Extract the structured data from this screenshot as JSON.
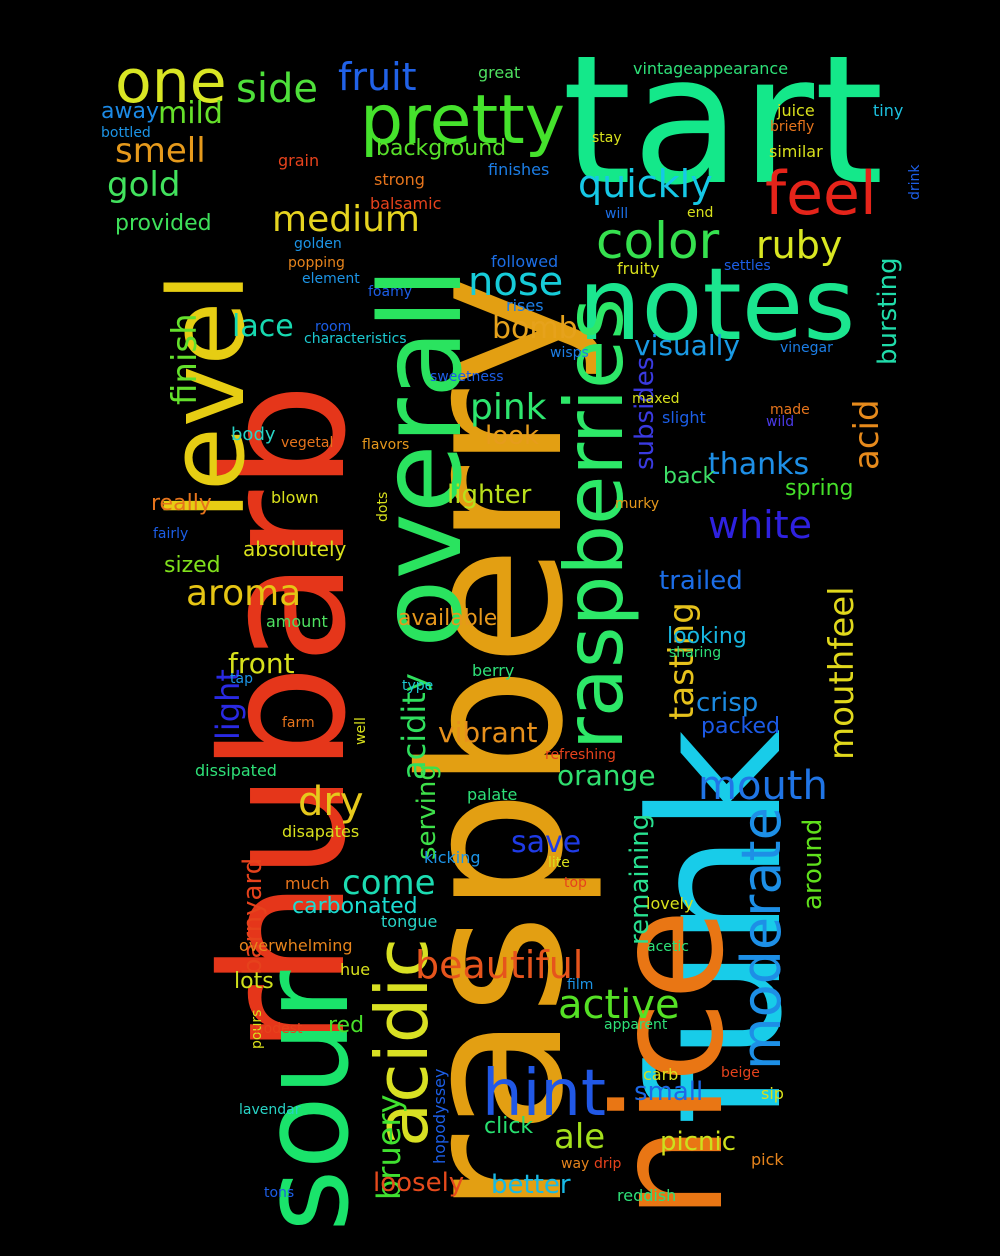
{
  "background": "#000000",
  "words": [
    {
      "text": "raspberry",
      "color": "#e39f12",
      "vertical": true
    },
    {
      "text": "funk",
      "color": "#18cce9",
      "vertical": true
    },
    {
      "text": "rhubarb",
      "color": "#e5361a",
      "vertical": true
    },
    {
      "text": "tart",
      "color": "#14e88a",
      "vertical": false
    },
    {
      "text": "nice",
      "color": "#e97614",
      "vertical": true
    },
    {
      "text": "sour",
      "color": "#1ae36b",
      "vertical": true
    },
    {
      "text": "overall",
      "color": "#2ae35f",
      "vertical": true
    },
    {
      "text": "level",
      "color": "#e6cd13",
      "vertical": true
    },
    {
      "text": "notes",
      "color": "#1be68f",
      "vertical": false
    },
    {
      "text": "raspberries",
      "color": "#2de868",
      "vertical": true
    },
    {
      "text": "acidic",
      "color": "#d8e023",
      "vertical": true
    },
    {
      "text": "pretty",
      "color": "#45e22c",
      "vertical": false
    },
    {
      "text": "hint",
      "color": "#2158e6",
      "vertical": false
    },
    {
      "text": "feel",
      "color": "#e5241a",
      "vertical": false
    },
    {
      "text": "one",
      "color": "#d9e624",
      "vertical": false
    },
    {
      "text": "color",
      "color": "#36e14f",
      "vertical": false
    },
    {
      "text": "moderate",
      "color": "#1d8fe6",
      "vertical": true
    },
    {
      "text": "side",
      "color": "#4ee03a",
      "vertical": false
    },
    {
      "text": "fruit",
      "color": "#2162e8",
      "vertical": false
    },
    {
      "text": "mouth",
      "color": "#2075e6",
      "vertical": false
    },
    {
      "text": "nose",
      "color": "#17ccd9",
      "vertical": false
    },
    {
      "text": "white",
      "color": "#2f21e0",
      "vertical": false
    },
    {
      "text": "beautiful",
      "color": "#e6541c",
      "vertical": false
    },
    {
      "text": "active",
      "color": "#55e125",
      "vertical": false
    },
    {
      "text": "quickly",
      "color": "#16c8e6",
      "vertical": false
    },
    {
      "text": "ruby",
      "color": "#d9e622",
      "vertical": false
    },
    {
      "text": "medium",
      "color": "#e6d420",
      "vertical": false
    },
    {
      "text": "smell",
      "color": "#e69a1c",
      "vertical": false
    },
    {
      "text": "gold",
      "color": "#42e25d",
      "vertical": false
    },
    {
      "text": "mild",
      "color": "#66e02a",
      "vertical": false
    },
    {
      "text": "finish",
      "color": "#64e02c",
      "vertical": true
    },
    {
      "text": "tasting",
      "color": "#e6c21c",
      "vertical": true
    },
    {
      "text": "mouthfeel",
      "color": "#e0d81c",
      "vertical": true
    },
    {
      "text": "acidity",
      "color": "#30e05e",
      "vertical": true
    },
    {
      "text": "aroma",
      "color": "#e6c514",
      "vertical": false
    },
    {
      "text": "dry",
      "color": "#e6c91c",
      "vertical": false
    },
    {
      "text": "come",
      "color": "#1cdcb2",
      "vertical": false
    },
    {
      "text": "pink",
      "color": "#2ee66f",
      "vertical": false
    },
    {
      "text": "acid",
      "color": "#e68a1c",
      "vertical": true
    },
    {
      "text": "light",
      "color": "#2a2ae3",
      "vertical": true
    },
    {
      "text": "bruery",
      "color": "#40e030",
      "vertical": true
    },
    {
      "text": "ale",
      "color": "#a4e01c",
      "vertical": false
    },
    {
      "text": "bomb",
      "color": "#e6a21c",
      "vertical": false
    },
    {
      "text": "lace",
      "color": "#17d9b0",
      "vertical": false
    },
    {
      "text": "visually",
      "color": "#1a9be6",
      "vertical": false
    },
    {
      "text": "thanks",
      "color": "#1e8fe6",
      "vertical": false
    },
    {
      "text": "lighter",
      "color": "#b9e01c",
      "vertical": false
    },
    {
      "text": "orange",
      "color": "#30e070",
      "vertical": false
    },
    {
      "text": "save",
      "color": "#1f3be6",
      "vertical": false
    },
    {
      "text": "front",
      "color": "#d6e01c",
      "vertical": false
    },
    {
      "text": "vibrant",
      "color": "#e6901c",
      "vertical": false
    },
    {
      "text": "crisp",
      "color": "#1c8ae0",
      "vertical": false
    },
    {
      "text": "trailed",
      "color": "#1c6de6",
      "vertical": false
    },
    {
      "text": "better",
      "color": "#18b9e6",
      "vertical": false
    },
    {
      "text": "picnic",
      "color": "#cce01c",
      "vertical": false
    },
    {
      "text": "small",
      "color": "#1c68e6",
      "vertical": false
    },
    {
      "text": "loosely",
      "color": "#e64a1c",
      "vertical": false
    },
    {
      "text": "subsides",
      "color": "#3a3ae0",
      "vertical": true
    },
    {
      "text": "serving",
      "color": "#3ee04a",
      "vertical": true
    },
    {
      "text": "remaining",
      "color": "#28e090",
      "vertical": true
    },
    {
      "text": "around",
      "color": "#60e01c",
      "vertical": true
    },
    {
      "text": "bursting",
      "color": "#20dcaa",
      "vertical": true
    },
    {
      "text": "barnyard",
      "color": "#e6421c",
      "vertical": true
    },
    {
      "text": "absolutely",
      "color": "#d8e01c",
      "vertical": false
    },
    {
      "text": "look",
      "color": "#e69c1c",
      "vertical": false
    },
    {
      "text": "background",
      "color": "#58e02a",
      "vertical": false
    },
    {
      "text": "carbonated",
      "color": "#1cdcd2",
      "vertical": false
    },
    {
      "text": "looking",
      "color": "#18b6e0",
      "vertical": false
    },
    {
      "text": "packed",
      "color": "#1c5ae6",
      "vertical": false
    },
    {
      "text": "spring",
      "color": "#46e02a",
      "vertical": false
    },
    {
      "text": "really",
      "color": "#e6741c",
      "vertical": false
    },
    {
      "text": "sized",
      "color": "#80e01c",
      "vertical": false
    },
    {
      "text": "available",
      "color": "#e6981c",
      "vertical": false
    },
    {
      "text": "back",
      "color": "#3ee068",
      "vertical": false
    },
    {
      "text": "provided",
      "color": "#3ee05a",
      "vertical": false
    },
    {
      "text": "away",
      "color": "#1c8ae6",
      "vertical": false
    },
    {
      "text": "lots",
      "color": "#d0e01c",
      "vertical": false
    },
    {
      "text": "click",
      "color": "#28e070",
      "vertical": false
    },
    {
      "text": "red",
      "color": "#48e02a",
      "vertical": false
    },
    {
      "text": "great",
      "color": "#4ee060",
      "vertical": false
    },
    {
      "text": "vintageappearance",
      "color": "#2ee078",
      "vertical": false
    },
    {
      "text": "juice",
      "color": "#d8e01c",
      "vertical": false
    },
    {
      "text": "tiny",
      "color": "#1cc2e0",
      "vertical": false
    },
    {
      "text": "briefly",
      "color": "#e6741c",
      "vertical": false
    },
    {
      "text": "bottled",
      "color": "#1c94e6",
      "vertical": false
    },
    {
      "text": "stay",
      "color": "#d8e01c",
      "vertical": false
    },
    {
      "text": "similar",
      "color": "#d8e01c",
      "vertical": false
    },
    {
      "text": "grain",
      "color": "#e6421c",
      "vertical": false
    },
    {
      "text": "finishes",
      "color": "#1c7ee6",
      "vertical": false
    },
    {
      "text": "strong",
      "color": "#e6741c",
      "vertical": false
    },
    {
      "text": "drink",
      "color": "#1c5ee6",
      "vertical": true
    },
    {
      "text": "balsamic",
      "color": "#e6421c",
      "vertical": false
    },
    {
      "text": "will",
      "color": "#1c6ee6",
      "vertical": false
    },
    {
      "text": "end",
      "color": "#d8e01c",
      "vertical": false
    },
    {
      "text": "golden",
      "color": "#1c94e6",
      "vertical": false
    },
    {
      "text": "popping",
      "color": "#e6841c",
      "vertical": false
    },
    {
      "text": "followed",
      "color": "#1c6ee6",
      "vertical": false
    },
    {
      "text": "fruity",
      "color": "#d8e01c",
      "vertical": false
    },
    {
      "text": "settles",
      "color": "#1c5ee6",
      "vertical": false
    },
    {
      "text": "element",
      "color": "#1c94e6",
      "vertical": false
    },
    {
      "text": "foamy",
      "color": "#1c5ee6",
      "vertical": false
    },
    {
      "text": "rises",
      "color": "#1c7ee6",
      "vertical": false
    },
    {
      "text": "room",
      "color": "#1c5ee6",
      "vertical": false
    },
    {
      "text": "characteristics",
      "color": "#1ccad2",
      "vertical": false
    },
    {
      "text": "wisps",
      "color": "#1c7ee6",
      "vertical": false
    },
    {
      "text": "vinegar",
      "color": "#1c7ee6",
      "vertical": false
    },
    {
      "text": "sweetness",
      "color": "#1c5ee6",
      "vertical": false
    },
    {
      "text": "maxed",
      "color": "#d8e01c",
      "vertical": false
    },
    {
      "text": "made",
      "color": "#e6741c",
      "vertical": false
    },
    {
      "text": "slight",
      "color": "#1c5ee6",
      "vertical": false
    },
    {
      "text": "wild",
      "color": "#4a3ae6",
      "vertical": false
    },
    {
      "text": "body",
      "color": "#28d4c6",
      "vertical": false
    },
    {
      "text": "vegetal",
      "color": "#e6741c",
      "vertical": false
    },
    {
      "text": "flavors",
      "color": "#e6981c",
      "vertical": false
    },
    {
      "text": "blown",
      "color": "#d8e01c",
      "vertical": false
    },
    {
      "text": "dots",
      "color": "#d8e01c",
      "vertical": true
    },
    {
      "text": "murky",
      "color": "#e6981c",
      "vertical": false
    },
    {
      "text": "fairly",
      "color": "#1c5ee6",
      "vertical": false
    },
    {
      "text": "amount",
      "color": "#4ee060",
      "vertical": false
    },
    {
      "text": "sharing",
      "color": "#2ee078",
      "vertical": false
    },
    {
      "text": "berry",
      "color": "#2ee078",
      "vertical": false
    },
    {
      "text": "tap",
      "color": "#1c94e6",
      "vertical": false
    },
    {
      "text": "type",
      "color": "#1ccad2",
      "vertical": false
    },
    {
      "text": "farm",
      "color": "#e6741c",
      "vertical": false
    },
    {
      "text": "well",
      "color": "#d8e01c",
      "vertical": true
    },
    {
      "text": "refreshing",
      "color": "#e6421c",
      "vertical": false
    },
    {
      "text": "dissipated",
      "color": "#2ee078",
      "vertical": false
    },
    {
      "text": "palate",
      "color": "#2ee078",
      "vertical": false
    },
    {
      "text": "disapates",
      "color": "#d8e01c",
      "vertical": false
    },
    {
      "text": "kicking",
      "color": "#1c94e6",
      "vertical": false
    },
    {
      "text": "lite",
      "color": "#d8e01c",
      "vertical": false
    },
    {
      "text": "much",
      "color": "#e6741c",
      "vertical": false
    },
    {
      "text": "top",
      "color": "#e6421c",
      "vertical": false
    },
    {
      "text": "tongue",
      "color": "#28d4c6",
      "vertical": false
    },
    {
      "text": "lovely",
      "color": "#d8e01c",
      "vertical": false
    },
    {
      "text": "overwhelming",
      "color": "#e6841c",
      "vertical": false
    },
    {
      "text": "acetic",
      "color": "#2ee078",
      "vertical": false
    },
    {
      "text": "hue",
      "color": "#d8e01c",
      "vertical": false
    },
    {
      "text": "film",
      "color": "#1c94e6",
      "vertical": false
    },
    {
      "text": "pours",
      "color": "#d8e01c",
      "vertical": true
    },
    {
      "text": "modest",
      "color": "#e6421c",
      "vertical": false
    },
    {
      "text": "apparent",
      "color": "#2ee078",
      "vertical": false
    },
    {
      "text": "hopodyssey",
      "color": "#1c5ee6",
      "vertical": true
    },
    {
      "text": "carb",
      "color": "#d8e01c",
      "vertical": false
    },
    {
      "text": "beige",
      "color": "#e6421c",
      "vertical": false
    },
    {
      "text": "sip",
      "color": "#d8e01c",
      "vertical": false
    },
    {
      "text": "lavendar",
      "color": "#28d4c6",
      "vertical": false
    },
    {
      "text": "way",
      "color": "#e6841c",
      "vertical": false
    },
    {
      "text": "drip",
      "color": "#e6421c",
      "vertical": false
    },
    {
      "text": "pick",
      "color": "#e6841c",
      "vertical": false
    },
    {
      "text": "tons",
      "color": "#1c5ee6",
      "vertical": false
    },
    {
      "text": "reddish",
      "color": "#2ee078",
      "vertical": false
    }
  ]
}
